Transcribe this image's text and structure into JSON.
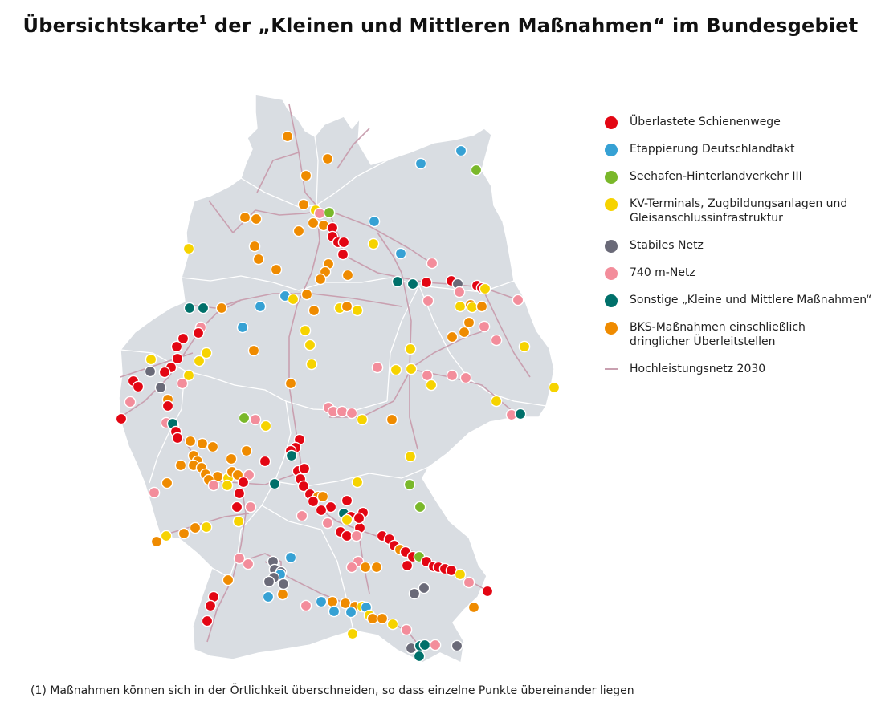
{
  "title": {
    "main": "Übersichtskarte",
    "sup": "1",
    "rest": " der „Kleinen und Mittleren Maßnahmen“ im Bundesgebiet"
  },
  "footnote": "(1) Maßnahmen können sich in der Örtlichkeit überschneiden, so dass einzelne Punkte übereinander liegen",
  "colors": {
    "land": "#d9dde2",
    "border": "#ffffff",
    "rail": "#c9a0b0",
    "red": "#e30613",
    "blue": "#36a1d4",
    "green": "#7ab82a",
    "yellow": "#f6d300",
    "gray": "#6a6a78",
    "pink": "#f38d9b",
    "teal": "#00706a",
    "orange": "#ef8b00"
  },
  "legend": [
    {
      "key": "red",
      "label": "Überlastete Schienenwege"
    },
    {
      "key": "blue",
      "label": "Etappierung Deutschlandtakt"
    },
    {
      "key": "green",
      "label": "Seehafen-Hinterlandverkehr III"
    },
    {
      "key": "yellow",
      "label": "KV-Terminals, Zugbildungsanlagen und Gleisanschlussinfrastruktur"
    },
    {
      "key": "gray",
      "label": "Stabiles Netz"
    },
    {
      "key": "pink",
      "label": "740 m-Netz"
    },
    {
      "key": "teal",
      "label": "Sonstige „Kleine und Mittlere Maßnahmen“"
    },
    {
      "key": "orange",
      "label": "BKS-Maßnahmen einschließlich dringlicher Überleitstellen"
    },
    {
      "key": "line",
      "label": "Hochleistungsnetz 2030"
    }
  ],
  "icons": {
    "marker": "circle-marker-icon",
    "network": "rail-line-icon"
  }
}
